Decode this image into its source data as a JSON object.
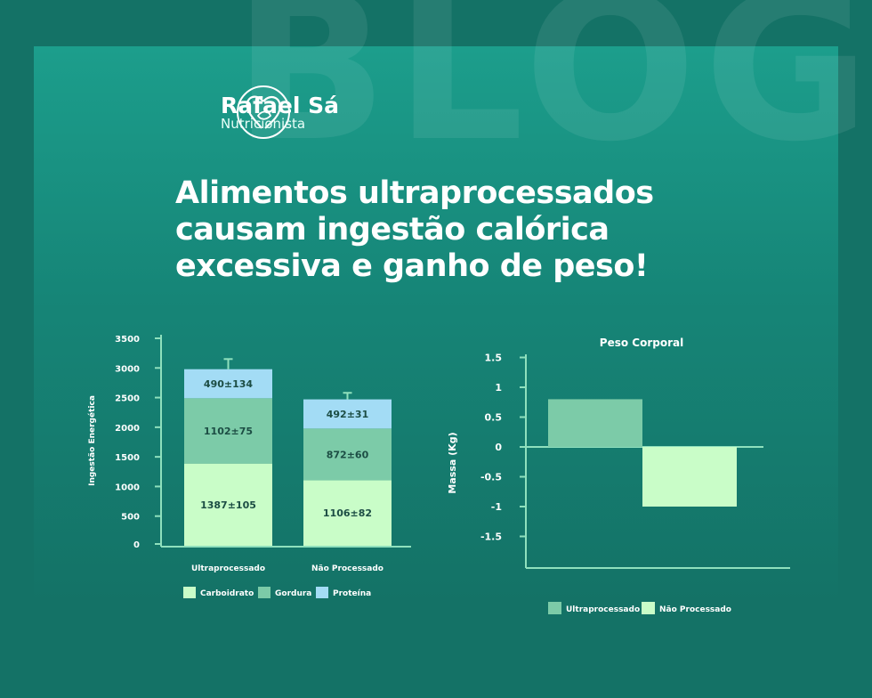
{
  "watermark": "BLOG",
  "brand": {
    "name": "Rafael Sá",
    "subtitle": "Nutricionista"
  },
  "headline": [
    "Alimentos ultraprocessados",
    "causam ingestão calórica",
    "excessiva e ganho de peso!"
  ],
  "colors": {
    "carb": "#c9fdc8",
    "fat": "#7ccba8",
    "protein": "#a3dcf5",
    "axis": "#8fe0bd",
    "ultra": "#7ccba8",
    "naoproc": "#c9fdc8",
    "label_dark": "#1c4d44"
  },
  "chart_data": [
    {
      "type": "bar",
      "stacked": true,
      "ylabel": "Ingestão Energética",
      "ylim": [
        0,
        3500
      ],
      "yticks": [
        0,
        500,
        1000,
        1500,
        2000,
        2500,
        3000,
        3500
      ],
      "categories": [
        "Ultraprocessado",
        "Não Processado"
      ],
      "series": [
        {
          "name": "Carboidrato",
          "values": [
            1387,
            1106
          ],
          "labels": [
            "1387±105",
            "1106±82"
          ]
        },
        {
          "name": "Gordura",
          "values": [
            1102,
            872
          ],
          "labels": [
            "1102±75",
            "872±60"
          ]
        },
        {
          "name": "Proteína",
          "values": [
            490,
            492
          ],
          "labels": [
            "490±134",
            "492±31"
          ]
        }
      ],
      "error_upper": [
        3150,
        2580
      ],
      "legend_position": "bottom"
    },
    {
      "type": "bar",
      "title": "Peso Corporal",
      "ylabel": "Massa (Kg)",
      "ylim": [
        -2,
        1.5
      ],
      "yticks": [
        1.5,
        1,
        0.5,
        0,
        -0.5,
        -1,
        -1.5
      ],
      "ytick_labels": [
        "1.5",
        "1",
        "0.5",
        "0",
        "-0.5",
        "-1",
        "-1.5"
      ],
      "categories": [
        "Ultraprocessado",
        "Não Processado"
      ],
      "values": [
        0.8,
        -1.0
      ],
      "legend_position": "bottom"
    }
  ]
}
